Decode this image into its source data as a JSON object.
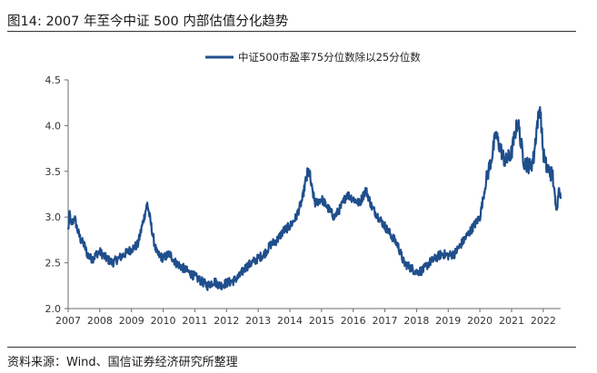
{
  "header": {
    "title": "图14: 2007 年至今中证 500 内部估值分化趋势"
  },
  "footer": {
    "source": "资料来源：Wind、国信证券经济研究所整理"
  },
  "colors": {
    "series": "#1f4e8c",
    "axis": "#6b6b6b",
    "text": "#222222"
  },
  "chart_data": {
    "type": "line",
    "title": "",
    "xlabel": "",
    "ylabel": "",
    "xlim": [
      2007.0,
      2022.55
    ],
    "ylim": [
      2.0,
      4.5
    ],
    "yticks": [
      "2.0",
      "2.5",
      "3.0",
      "3.5",
      "4.0",
      "4.5"
    ],
    "xticks": [
      "2007",
      "2008",
      "2009",
      "2010",
      "2011",
      "2012",
      "2013",
      "2014",
      "2015",
      "2016",
      "2017",
      "2018",
      "2019",
      "2020",
      "2021",
      "2022"
    ],
    "grid": false,
    "legend_position": "top-center",
    "series": [
      {
        "name": "中证500市盈率75分位数除以25分位数",
        "color": "#1f4e8c",
        "x": [
          2007.0,
          2007.05,
          2007.1,
          2007.2,
          2007.3,
          2007.4,
          2007.5,
          2007.6,
          2007.7,
          2007.8,
          2007.9,
          2008.0,
          2008.2,
          2008.4,
          2008.6,
          2008.8,
          2009.0,
          2009.2,
          2009.4,
          2009.5,
          2009.6,
          2009.7,
          2009.8,
          2010.0,
          2010.2,
          2010.4,
          2010.6,
          2010.8,
          2011.0,
          2011.2,
          2011.4,
          2011.6,
          2011.8,
          2012.0,
          2012.2,
          2012.4,
          2012.6,
          2012.8,
          2013.0,
          2013.2,
          2013.4,
          2013.6,
          2013.8,
          2014.0,
          2014.2,
          2014.4,
          2014.5,
          2014.6,
          2014.7,
          2014.8,
          2015.0,
          2015.2,
          2015.4,
          2015.6,
          2015.8,
          2016.0,
          2016.2,
          2016.4,
          2016.6,
          2016.8,
          2017.0,
          2017.2,
          2017.4,
          2017.6,
          2017.8,
          2018.0,
          2018.2,
          2018.4,
          2018.6,
          2018.8,
          2019.0,
          2019.2,
          2019.4,
          2019.6,
          2019.8,
          2020.0,
          2020.2,
          2020.4,
          2020.5,
          2020.6,
          2020.8,
          2021.0,
          2021.1,
          2021.2,
          2021.3,
          2021.4,
          2021.6,
          2021.7,
          2021.8,
          2021.9,
          2022.0,
          2022.1,
          2022.2,
          2022.3,
          2022.4,
          2022.45,
          2022.5,
          2022.55
        ],
        "values": [
          2.85,
          3.05,
          2.9,
          3.0,
          2.85,
          2.75,
          2.7,
          2.6,
          2.55,
          2.55,
          2.6,
          2.62,
          2.55,
          2.5,
          2.55,
          2.6,
          2.65,
          2.7,
          3.0,
          3.15,
          2.95,
          2.75,
          2.6,
          2.55,
          2.6,
          2.5,
          2.45,
          2.4,
          2.35,
          2.3,
          2.25,
          2.3,
          2.25,
          2.28,
          2.3,
          2.35,
          2.45,
          2.5,
          2.55,
          2.6,
          2.7,
          2.75,
          2.85,
          2.9,
          3.0,
          3.2,
          3.4,
          3.5,
          3.3,
          3.15,
          3.2,
          3.1,
          3.0,
          3.1,
          3.25,
          3.2,
          3.15,
          3.3,
          3.1,
          3.0,
          2.9,
          2.8,
          2.7,
          2.5,
          2.45,
          2.4,
          2.42,
          2.5,
          2.55,
          2.6,
          2.58,
          2.6,
          2.7,
          2.8,
          2.9,
          3.0,
          3.4,
          3.7,
          3.9,
          3.8,
          3.6,
          3.7,
          3.9,
          4.05,
          3.8,
          3.6,
          3.55,
          3.65,
          4.0,
          4.2,
          3.7,
          3.55,
          3.5,
          3.45,
          3.1,
          3.15,
          3.35,
          3.2
        ]
      }
    ]
  }
}
